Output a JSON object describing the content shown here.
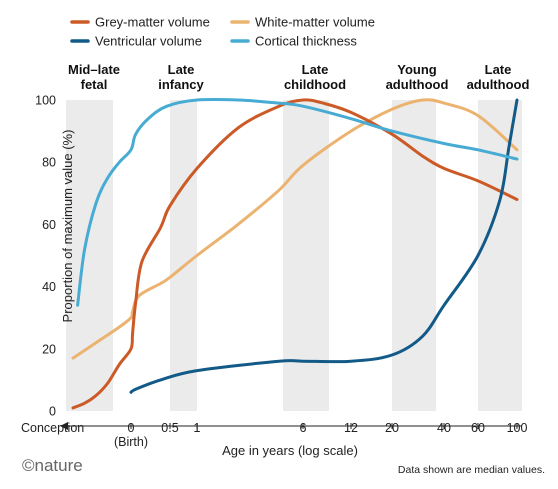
{
  "chart_data": {
    "type": "line",
    "xlabel": "Age in years (log scale)",
    "ylabel": "Proportion of maximum value (%)",
    "ylim": [
      0,
      100
    ],
    "yticks": [
      "0",
      "20",
      "40",
      "60",
      "80",
      "100"
    ],
    "xticks": [
      {
        "x": -0.75,
        "label": "0"
      },
      {
        "x": 0.5,
        "label": "0.5"
      },
      {
        "x": 1,
        "label": "1"
      },
      {
        "x": 6,
        "label": "6"
      },
      {
        "x": 12,
        "label": "12"
      },
      {
        "x": 20,
        "label": "20"
      },
      {
        "x": 40,
        "label": "40"
      },
      {
        "x": 60,
        "label": "60"
      },
      {
        "x": 100,
        "label": "100"
      }
    ],
    "x_anchor_labels": [
      {
        "x": -0.75,
        "label": "(Birth)"
      },
      {
        "x": -1,
        "label": "Conception"
      }
    ],
    "grid": false,
    "legend_position": "top",
    "stage_bands": [
      {
        "label_lines": [
          "Mid–late",
          "fetal"
        ],
        "x_center": -0.9
      },
      {
        "label_lines": [
          "Late",
          "infancy"
        ],
        "x_center": 0.7
      },
      {
        "label_lines": [
          "Late",
          "childhood"
        ],
        "x_center": 8.5
      },
      {
        "label_lines": [
          "Young",
          "adulthood"
        ],
        "x_center": 28
      },
      {
        "label_lines": [
          "Late",
          "adulthood"
        ],
        "x_center": 76
      }
    ],
    "series": [
      {
        "name": "Grey-matter volume",
        "color": "#cc5a27",
        "x": [
          -1,
          -0.95,
          -0.9,
          -0.85,
          -0.8,
          -0.75,
          -0.7,
          -0.6,
          -0.4,
          0.2,
          0.5,
          1,
          2,
          4,
          6,
          8,
          12,
          20,
          30,
          40,
          60,
          100
        ],
        "y": [
          1,
          2.5,
          5,
          9,
          15,
          20,
          25,
          35,
          48,
          59,
          66,
          78,
          91,
          98,
          100,
          99,
          96,
          89,
          82,
          78,
          74,
          68
        ]
      },
      {
        "name": "White-matter volume",
        "color": "#ebb36f",
        "x": [
          -1,
          -0.9,
          -0.8,
          -0.75,
          -0.7,
          -0.5,
          0.2,
          0.5,
          1,
          2,
          4,
          6,
          12,
          20,
          30,
          40,
          60,
          100
        ],
        "y": [
          17,
          22,
          27,
          30,
          32,
          37,
          41,
          43,
          50,
          60,
          71,
          79,
          90,
          97,
          100,
          99,
          95,
          84
        ]
      },
      {
        "name": "Ventricular volume",
        "color": "#125a87",
        "x": [
          -0.75,
          -0.6,
          0.2,
          1,
          4,
          6,
          12,
          20,
          30,
          40,
          60,
          80,
          90,
          100
        ],
        "y": [
          6,
          7,
          10,
          13,
          16,
          16,
          16,
          18,
          24,
          34,
          50,
          68,
          85,
          100
        ]
      },
      {
        "name": "Cortical thickness",
        "color": "#47abd3",
        "x": [
          -0.98,
          -0.95,
          -0.9,
          -0.85,
          -0.8,
          -0.75,
          -0.6,
          -0.2,
          0.4,
          1,
          2,
          4,
          6,
          12,
          20,
          40,
          60,
          100
        ],
        "y": [
          34,
          52,
          67,
          75,
          80,
          84,
          89,
          94,
          98,
          100,
          100,
          99,
          98,
          94,
          90,
          86,
          84,
          81
        ]
      }
    ]
  },
  "footer": {
    "note": "Data shown are median values.",
    "brand": "©nature"
  }
}
